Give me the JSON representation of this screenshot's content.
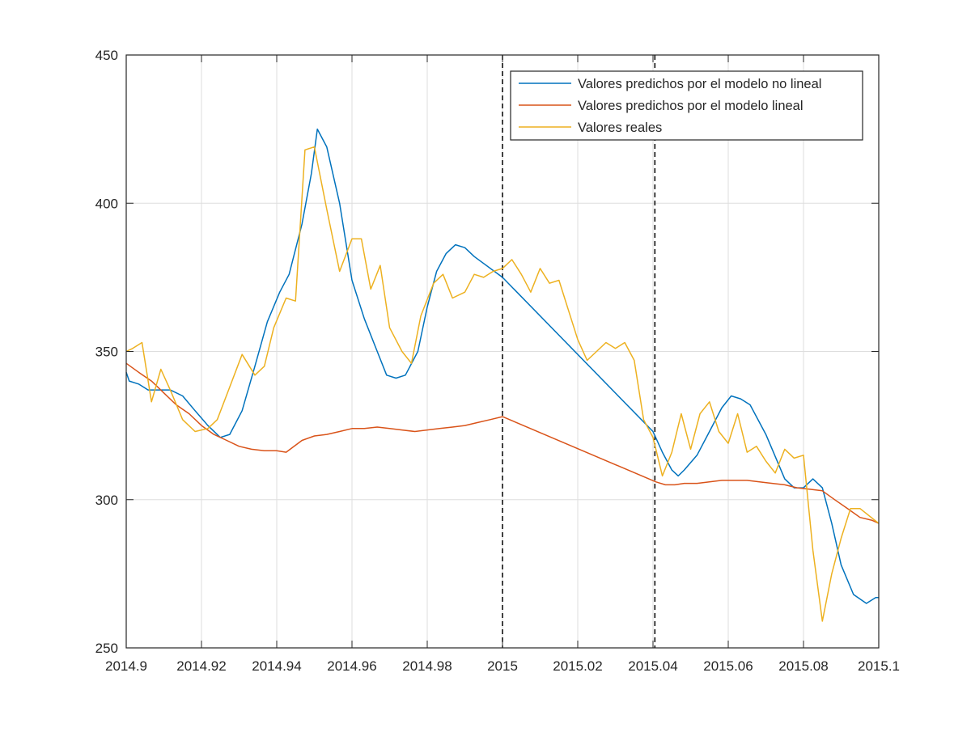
{
  "chart_data": {
    "type": "line",
    "title": "",
    "xlabel": "",
    "ylabel": "",
    "xlim": [
      2014.9,
      2015.1
    ],
    "ylim": [
      250,
      450
    ],
    "x_ticks": [
      2014.9,
      2014.92,
      2014.94,
      2014.96,
      2014.98,
      2015.0,
      2015.02,
      2015.04,
      2015.06,
      2015.08,
      2015.1
    ],
    "x_tick_labels": [
      "2014.9",
      "2014.92",
      "2014.94",
      "2014.96",
      "2014.98",
      "2015",
      "2015.02",
      "2015.04",
      "2015.06",
      "2015.08",
      "2015.1"
    ],
    "y_ticks": [
      250,
      300,
      350,
      400,
      450
    ],
    "y_tick_labels": [
      "250",
      "300",
      "350",
      "400",
      "450"
    ],
    "grid": true,
    "legend_position": "top-right",
    "vertical_lines": [
      2015.0,
      2015.0405
    ],
    "series": [
      {
        "name": "Valores predichos por el modelo no lineal",
        "color": "#0072BD",
        "x": [
          2014.9,
          2014.9008,
          2014.9033,
          2014.9058,
          2014.9083,
          2014.9117,
          2014.915,
          2014.9183,
          2014.9217,
          2014.925,
          2014.9275,
          2014.9308,
          2014.9342,
          2014.9375,
          2014.9408,
          2014.9433,
          2014.9467,
          2014.9492,
          2014.9508,
          2014.9533,
          2014.9567,
          2014.96,
          2014.9633,
          2014.9667,
          2014.9692,
          2014.9717,
          2014.9742,
          2014.9775,
          2014.98,
          2014.9825,
          2014.985,
          2014.9875,
          2014.99,
          2014.9925,
          2015.0,
          2015.04,
          2015.0425,
          2015.045,
          2015.0467,
          2015.0483,
          2015.0517,
          2015.055,
          2015.0583,
          2015.0608,
          2015.0633,
          2015.0658,
          2015.07,
          2015.075,
          2015.0775,
          2015.08,
          2015.0825,
          2015.085,
          2015.0875,
          2015.09,
          2015.0933,
          2015.0967,
          2015.0992,
          2015.1
        ],
        "y": [
          343,
          340,
          339,
          337,
          337,
          337,
          335,
          330,
          325,
          321,
          322,
          330,
          345,
          360,
          370,
          376,
          393,
          410,
          425,
          419,
          400,
          374,
          361,
          350,
          342,
          341,
          342,
          350,
          365,
          377,
          383,
          386,
          385,
          382,
          375,
          323,
          316,
          310,
          308,
          310,
          315,
          323,
          331,
          335,
          334,
          332,
          322,
          307,
          304,
          304,
          307,
          304,
          292,
          278,
          268,
          265,
          267,
          267
        ]
      },
      {
        "name": "Valores predichos por el modelo lineal",
        "color": "#D95319",
        "x": [
          2014.9,
          2014.9033,
          2014.9067,
          2014.91,
          2014.9133,
          2014.9167,
          2014.92,
          2014.9233,
          2014.9267,
          2014.93,
          2014.9333,
          2014.9367,
          2014.94,
          2014.9425,
          2014.9467,
          2014.95,
          2014.9533,
          2014.9567,
          2014.96,
          2014.9633,
          2014.9667,
          2014.97,
          2014.9733,
          2014.9767,
          2014.98,
          2014.9833,
          2014.9867,
          2014.99,
          2014.9933,
          2014.9967,
          2015.0,
          2015.0408,
          2015.0433,
          2015.0458,
          2015.0483,
          2015.0517,
          2015.055,
          2015.0583,
          2015.0617,
          2015.065,
          2015.0683,
          2015.0717,
          2015.075,
          2015.0783,
          2015.0817,
          2015.085,
          2015.0883,
          2015.0917,
          2015.095,
          2015.0983,
          2015.1
        ],
        "y": [
          346,
          343,
          340,
          336,
          332,
          329,
          325,
          322,
          320,
          318,
          317,
          316.5,
          316.5,
          316,
          320,
          321.5,
          322,
          323,
          324,
          324,
          324.5,
          324,
          323.5,
          323,
          323.5,
          324,
          324.5,
          325,
          326,
          327,
          328,
          306,
          305,
          305,
          305.5,
          305.5,
          306,
          306.5,
          306.5,
          306.5,
          306,
          305.5,
          305,
          304,
          303.5,
          303,
          300,
          297,
          294,
          293,
          292
        ]
      },
      {
        "name": "Valores reales",
        "color": "#EDB120",
        "x": [
          2014.9,
          2014.9017,
          2014.9042,
          2014.9067,
          2014.9092,
          2014.9117,
          2014.915,
          2014.9183,
          2014.9217,
          2014.9242,
          2014.9275,
          2014.9308,
          2014.9342,
          2014.9367,
          2014.9392,
          2014.9425,
          2014.945,
          2014.9475,
          2014.95,
          2014.9533,
          2014.9567,
          2014.96,
          2014.9625,
          2014.965,
          2014.9675,
          2014.97,
          2014.9733,
          2014.9758,
          2014.9783,
          2014.9817,
          2014.9842,
          2014.9867,
          2014.99,
          2014.9925,
          2014.995,
          2014.9975,
          2015.0,
          2015.0025,
          2015.005,
          2015.0075,
          2015.01,
          2015.0125,
          2015.015,
          2015.0175,
          2015.02,
          2015.0225,
          2015.025,
          2015.0275,
          2015.03,
          2015.0325,
          2015.035,
          2015.0375,
          2015.04,
          2015.0425,
          2015.045,
          2015.0475,
          2015.05,
          2015.0525,
          2015.055,
          2015.0575,
          2015.06,
          2015.0625,
          2015.065,
          2015.0675,
          2015.07,
          2015.0725,
          2015.075,
          2015.0775,
          2015.08,
          2015.0825,
          2015.085,
          2015.0875,
          2015.09,
          2015.0925,
          2015.095,
          2015.1
        ],
        "y": [
          350,
          351,
          353,
          333,
          344,
          337,
          327,
          323,
          324,
          327,
          338,
          349,
          342,
          345,
          358,
          368,
          367,
          418,
          419,
          398,
          377,
          388,
          388,
          371,
          379,
          358,
          350,
          346,
          362,
          373,
          376,
          368,
          370,
          376,
          375,
          377,
          378,
          381,
          376,
          370,
          378,
          373,
          374,
          364,
          354,
          347,
          350,
          353,
          351,
          353,
          347,
          327,
          321,
          308,
          316,
          329,
          317,
          329,
          333,
          323,
          319,
          329,
          316,
          318,
          313,
          309,
          317,
          314,
          315,
          283,
          259,
          275,
          287,
          297,
          297,
          292
        ]
      }
    ]
  }
}
